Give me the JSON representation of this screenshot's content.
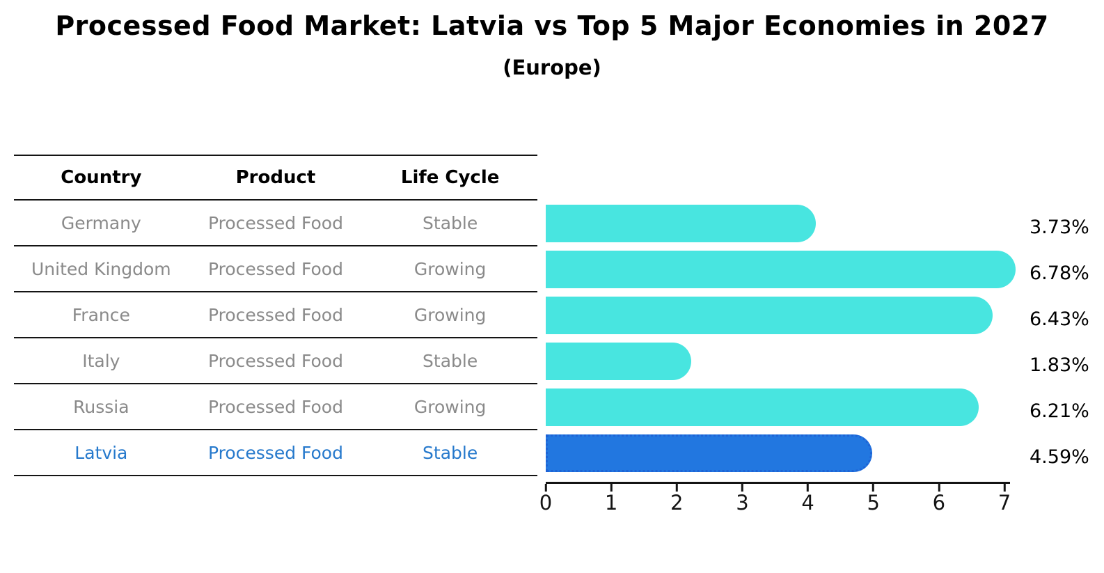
{
  "title": "Processed Food Market: Latvia vs Top 5 Major Economies in 2027",
  "subtitle": "(Europe)",
  "table": {
    "headers": [
      "Country",
      "Product",
      "Life Cycle"
    ],
    "rows": [
      {
        "country": "Germany",
        "product": "Processed Food",
        "life_cycle": "Stable",
        "highlight": false
      },
      {
        "country": "United Kingdom",
        "product": "Processed Food",
        "life_cycle": "Growing",
        "highlight": false
      },
      {
        "country": "France",
        "product": "Processed Food",
        "life_cycle": "Growing",
        "highlight": false
      },
      {
        "country": "Italy",
        "product": "Processed Food",
        "life_cycle": "Stable",
        "highlight": false
      },
      {
        "country": "Russia",
        "product": "Processed Food",
        "life_cycle": "Growing",
        "highlight": false
      },
      {
        "country": "Latvia",
        "product": "Processed Food",
        "life_cycle": "Stable",
        "highlight": true
      }
    ]
  },
  "chart_data": {
    "type": "bar",
    "orientation": "horizontal",
    "title": "Processed Food Market: Latvia vs Top 5 Major Economies in 2027 (Europe)",
    "categories": [
      "Germany",
      "United Kingdom",
      "France",
      "Italy",
      "Russia",
      "Latvia"
    ],
    "values": [
      3.73,
      6.78,
      6.43,
      1.83,
      6.21,
      4.59
    ],
    "value_labels": [
      "3.73%",
      "6.78%",
      "6.43%",
      "1.83%",
      "6.21%",
      "4.59%"
    ],
    "xlabel": "",
    "ylabel": "",
    "xlim": [
      0,
      7
    ],
    "x_ticks": [
      0,
      1,
      2,
      3,
      4,
      5,
      6,
      7
    ],
    "grid": false,
    "legend": false,
    "bar_color": "#48E5E0",
    "highlight_index": 5,
    "highlight_bar_color": "#2277E0",
    "highlight_border_color": "#1E63D6",
    "highlight_text_color": "#2679CC"
  }
}
